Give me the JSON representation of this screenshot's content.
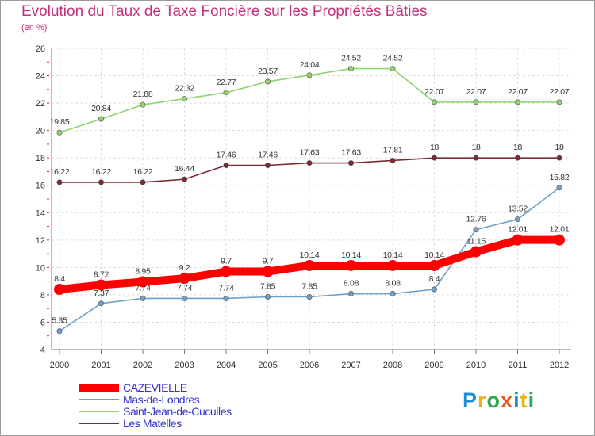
{
  "title": "Evolution du Taux de Taxe Foncière sur les Propriétés Bâties",
  "unit": "(en %)",
  "logo": {
    "text": "Proxiti",
    "colors": [
      "#1e8fd6",
      "#e8b21c",
      "#2fa84f",
      "#e85c1a",
      "#1e8fd6",
      "#e8b21c",
      "#2fa84f"
    ]
  },
  "chart_data": {
    "type": "line",
    "x": [
      "2000",
      "2001",
      "2002",
      "2003",
      "2004",
      "2005",
      "2006",
      "2007",
      "2008",
      "2009",
      "2010",
      "2011",
      "2012"
    ],
    "ylim": [
      4,
      26
    ],
    "yticks": [
      "4",
      "6",
      "8",
      "10",
      "12",
      "14",
      "16",
      "18",
      "20",
      "22",
      "24",
      "26"
    ],
    "grid": true,
    "legend_position": "bottom-left",
    "series": [
      {
        "name": "CAZEVIELLE",
        "color": "#ff0000",
        "values": [
          8.4,
          8.72,
          8.95,
          9.2,
          9.7,
          9.7,
          10.14,
          10.14,
          10.14,
          10.14,
          11.15,
          12.01,
          12.01
        ],
        "labels": [
          "8.4",
          "8.72",
          "8.95",
          "9.2",
          "9.7",
          "9.7",
          "10.14",
          "10.14",
          "10.14",
          "10.14",
          "11.15",
          "12.01",
          "12.01"
        ]
      },
      {
        "name": "Mas-de-Londres",
        "color": "#6fa0c8",
        "values": [
          5.35,
          7.37,
          7.74,
          7.74,
          7.74,
          7.85,
          7.85,
          8.08,
          8.08,
          8.4,
          12.76,
          13.52,
          15.82
        ],
        "labels": [
          "5.35",
          "7.37",
          "7.74",
          "7.74",
          "7.74",
          "7.85",
          "7.85",
          "8.08",
          "8.08",
          "8.4",
          "12.76",
          "13.52",
          "15.82"
        ]
      },
      {
        "name": "Saint-Jean-de-Cuculles",
        "color": "#8fd36c",
        "values": [
          19.85,
          20.84,
          21.88,
          22.32,
          22.77,
          23.57,
          24.04,
          24.52,
          24.52,
          22.07,
          22.07,
          22.07,
          22.07
        ],
        "labels": [
          "19.85",
          "20.84",
          "21.88",
          "22.32",
          "22.77",
          "23.57",
          "24.04",
          "24.52",
          "24.52",
          "22.07",
          "22.07",
          "22.07",
          "22.07"
        ]
      },
      {
        "name": "Les Matelles",
        "color": "#7a2a35",
        "values": [
          16.22,
          16.22,
          16.22,
          16.44,
          17.46,
          17.46,
          17.63,
          17.63,
          17.81,
          18,
          18,
          18,
          18
        ],
        "labels": [
          "16.22",
          "16.22",
          "16.22",
          "16.44",
          "17.46",
          "17.46",
          "17.63",
          "17.63",
          "17.81",
          "18",
          "18",
          "18",
          "18"
        ]
      }
    ]
  }
}
